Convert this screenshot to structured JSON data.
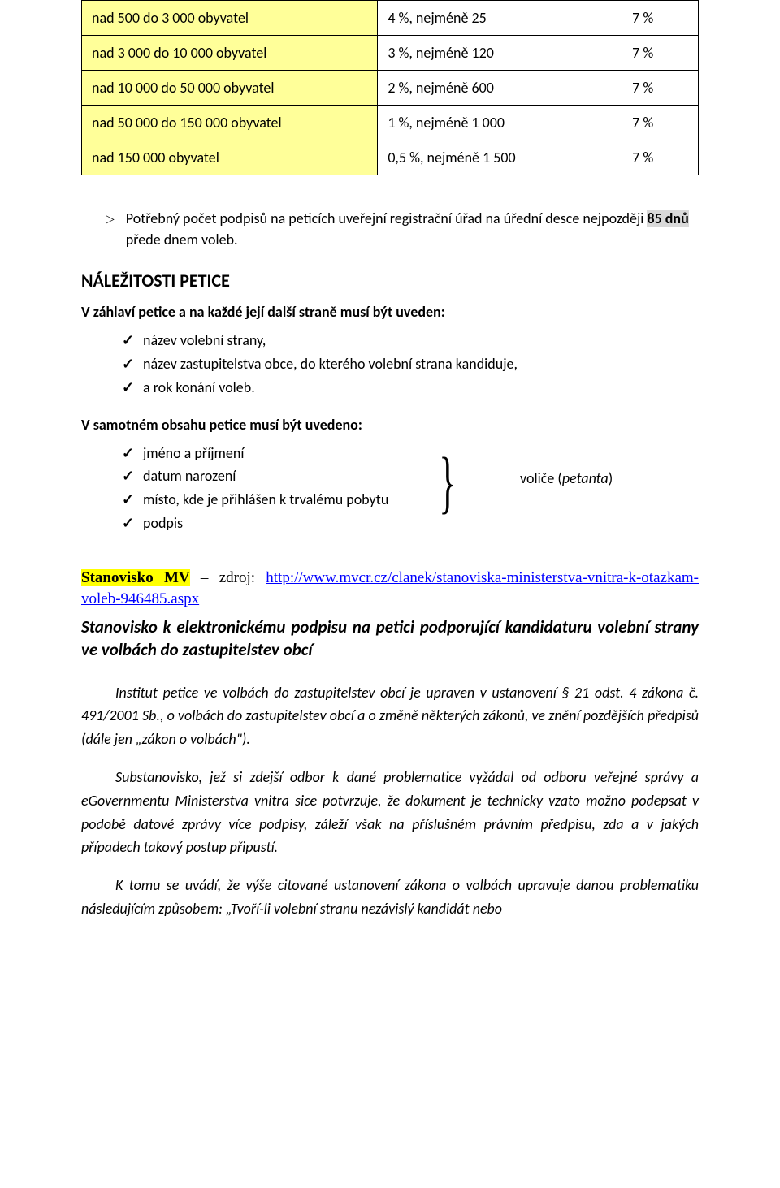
{
  "table": {
    "rows": [
      {
        "cat": "nad 500 do 3 000 obyvatel",
        "val": "4 %, nejméně 25",
        "pct": "7 %"
      },
      {
        "cat": "nad 3 000 do 10 000 obyvatel",
        "val": "3 %, nejméně 120",
        "pct": "7 %"
      },
      {
        "cat": "nad 10 000 do 50 000 obyvatel",
        "val": "2 %, nejméně 600",
        "pct": "7 %"
      },
      {
        "cat": "nad 50 000 do 150 000 obyvatel",
        "val": "1 %, nejméně 1 000",
        "pct": "7 %"
      },
      {
        "cat": "nad 150 000 obyvatel",
        "val": "0,5 %, nejméně 1 500",
        "pct": "7 %"
      }
    ]
  },
  "deadline": {
    "pre": "Potřebný počet podpisů na peticích uveřejní registrační úřad na úřední desce nejpozději ",
    "hl": "85 dnů",
    "post": " přede dnem voleb."
  },
  "section_title": "NÁLEŽITOSTI   PETICE",
  "header_intro": "V záhlaví petice a na každé její další straně musí být uveden:",
  "header_items": [
    "název volební strany,",
    "název zastupitelstva obce, do kterého volební strana kandiduje,",
    "a rok konání voleb."
  ],
  "content_intro": "V samotném obsahu petice musí být uvedeno:",
  "content_items": [
    "jméno a příjmení",
    "datum narození",
    "místo, kde je přihlášen k trvalému pobytu",
    "podpis"
  ],
  "volice_label": "voliče (",
  "petanta": "petanta",
  "volice_close": ")",
  "stanovisko": {
    "label": "Stanovisko MV",
    "dash": " – ",
    "source_prefix": "zdroj: ",
    "url": "http://www.mvcr.cz/clanek/stanoviska-ministerstva-vnitra-k-otazkam-voleb-946485.aspx",
    "title": "Stanovisko k elektronickému podpisu na petici podporující kandidaturu volební strany ve volbách do zastupitelstev obcí"
  },
  "body": [
    "Institut petice ve volbách do zastupitelstev obcí je upraven v ustanovení § 21 odst. 4 zákona č. 491/2001 Sb., o volbách do zastupitelstev obcí a o změně některých zákonů, ve znění pozdějších předpisů (dále jen „zákon o volbách\").",
    "Substanovisko, jež si zdejší odbor k dané problematice vyžádal od odboru veřejné správy a eGovernmentu Ministerstva vnitra sice potvrzuje, že dokument je technicky vzato možno podepsat v podobě datové zprávy více podpisy, záleží však na příslušném právním předpisu, zda a v jakých případech takový postup připustí.",
    "K tomu se uvádí, že výše citované ustanovení zákona o volbách upravuje danou problematiku následujícím způsobem: „Tvoří-li volební stranu nezávislý kandidát nebo"
  ]
}
